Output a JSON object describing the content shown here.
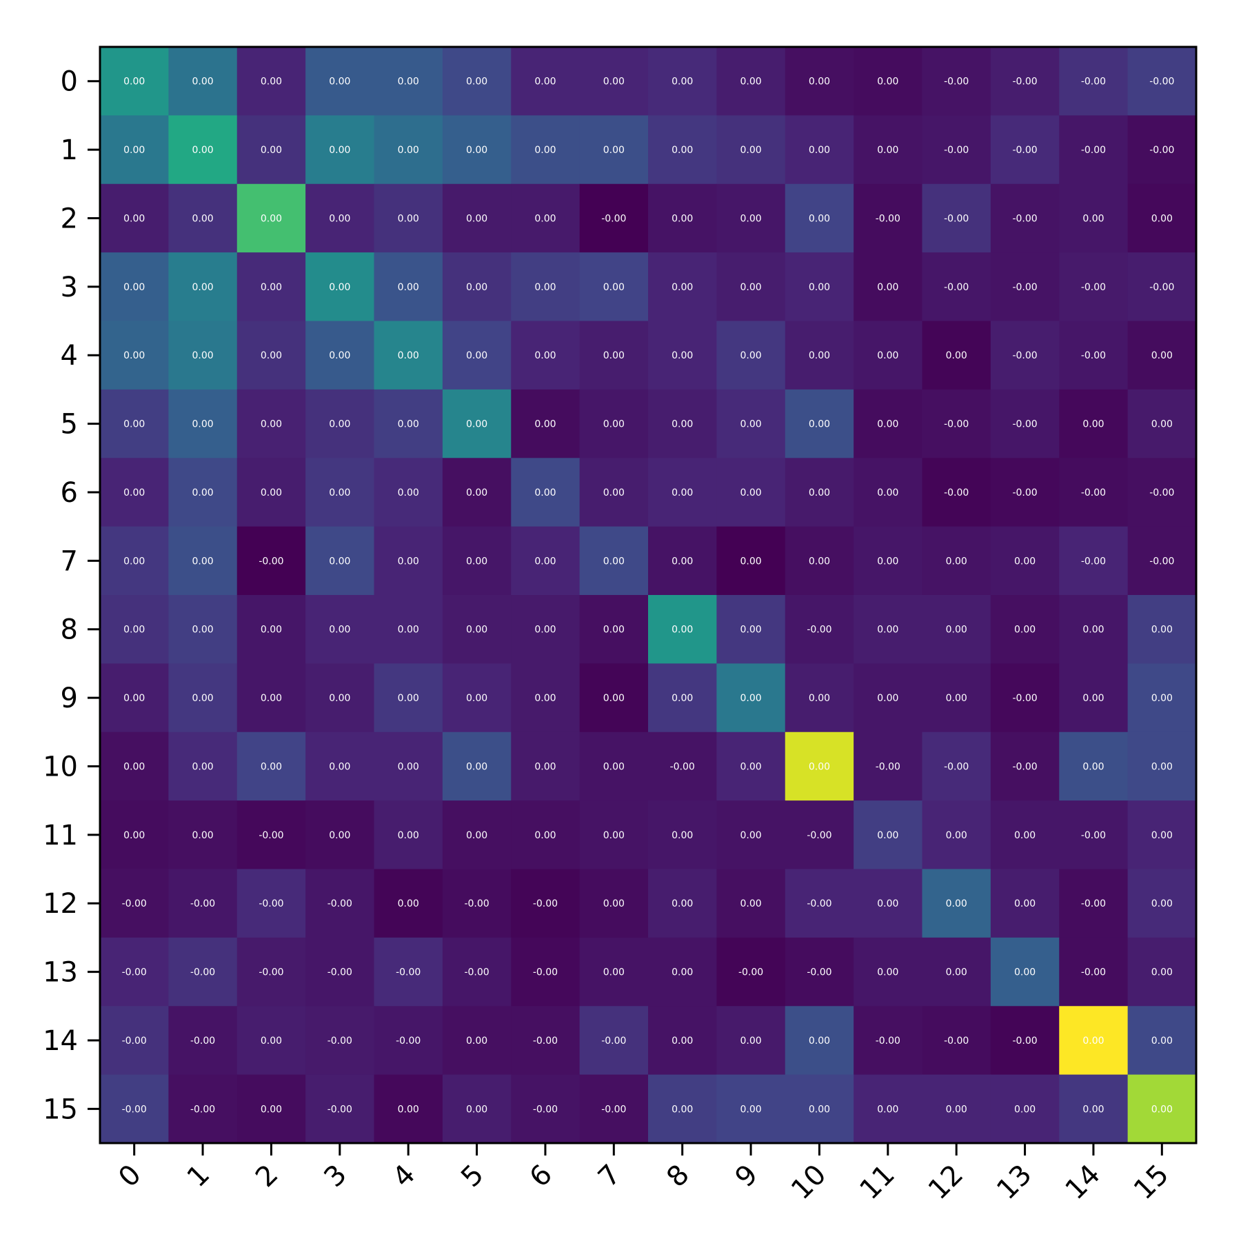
{
  "chart_data": {
    "type": "heatmap",
    "title": "",
    "xlabel": "",
    "ylabel": "",
    "colormap": "viridis",
    "x_categories": [
      "0",
      "1",
      "2",
      "3",
      "4",
      "5",
      "6",
      "7",
      "8",
      "9",
      "10",
      "11",
      "12",
      "13",
      "14",
      "15"
    ],
    "y_categories": [
      "0",
      "1",
      "2",
      "3",
      "4",
      "5",
      "6",
      "7",
      "8",
      "9",
      "10",
      "11",
      "12",
      "13",
      "14",
      "15"
    ],
    "grid": false,
    "legend": "none",
    "cell_labels": [
      [
        "0.00",
        "0.00",
        "0.00",
        "0.00",
        "0.00",
        "0.00",
        "0.00",
        "0.00",
        "0.00",
        "0.00",
        "0.00",
        "0.00",
        "-0.00",
        "-0.00",
        "-0.00",
        "-0.00"
      ],
      [
        "0.00",
        "0.00",
        "0.00",
        "0.00",
        "0.00",
        "0.00",
        "0.00",
        "0.00",
        "0.00",
        "0.00",
        "0.00",
        "0.00",
        "-0.00",
        "-0.00",
        "-0.00",
        "-0.00"
      ],
      [
        "0.00",
        "0.00",
        "0.00",
        "0.00",
        "0.00",
        "0.00",
        "0.00",
        "-0.00",
        "0.00",
        "0.00",
        "0.00",
        "-0.00",
        "-0.00",
        "-0.00",
        "0.00",
        "0.00"
      ],
      [
        "0.00",
        "0.00",
        "0.00",
        "0.00",
        "0.00",
        "0.00",
        "0.00",
        "0.00",
        "0.00",
        "0.00",
        "0.00",
        "0.00",
        "-0.00",
        "-0.00",
        "-0.00",
        "-0.00"
      ],
      [
        "0.00",
        "0.00",
        "0.00",
        "0.00",
        "0.00",
        "0.00",
        "0.00",
        "0.00",
        "0.00",
        "0.00",
        "0.00",
        "0.00",
        "0.00",
        "-0.00",
        "-0.00",
        "0.00"
      ],
      [
        "0.00",
        "0.00",
        "0.00",
        "0.00",
        "0.00",
        "0.00",
        "0.00",
        "0.00",
        "0.00",
        "0.00",
        "0.00",
        "0.00",
        "-0.00",
        "-0.00",
        "0.00",
        "0.00"
      ],
      [
        "0.00",
        "0.00",
        "0.00",
        "0.00",
        "0.00",
        "0.00",
        "0.00",
        "0.00",
        "0.00",
        "0.00",
        "0.00",
        "0.00",
        "-0.00",
        "-0.00",
        "-0.00",
        "-0.00"
      ],
      [
        "0.00",
        "0.00",
        "-0.00",
        "0.00",
        "0.00",
        "0.00",
        "0.00",
        "0.00",
        "0.00",
        "0.00",
        "0.00",
        "0.00",
        "0.00",
        "0.00",
        "-0.00",
        "-0.00"
      ],
      [
        "0.00",
        "0.00",
        "0.00",
        "0.00",
        "0.00",
        "0.00",
        "0.00",
        "0.00",
        "0.00",
        "0.00",
        "-0.00",
        "0.00",
        "0.00",
        "0.00",
        "0.00",
        "0.00"
      ],
      [
        "0.00",
        "0.00",
        "0.00",
        "0.00",
        "0.00",
        "0.00",
        "0.00",
        "0.00",
        "0.00",
        "0.00",
        "0.00",
        "0.00",
        "0.00",
        "-0.00",
        "0.00",
        "0.00"
      ],
      [
        "0.00",
        "0.00",
        "0.00",
        "0.00",
        "0.00",
        "0.00",
        "0.00",
        "0.00",
        "-0.00",
        "0.00",
        "0.00",
        "-0.00",
        "-0.00",
        "-0.00",
        "0.00",
        "0.00"
      ],
      [
        "0.00",
        "0.00",
        "-0.00",
        "0.00",
        "0.00",
        "0.00",
        "0.00",
        "0.00",
        "0.00",
        "0.00",
        "-0.00",
        "0.00",
        "0.00",
        "0.00",
        "-0.00",
        "0.00"
      ],
      [
        "-0.00",
        "-0.00",
        "-0.00",
        "-0.00",
        "0.00",
        "-0.00",
        "-0.00",
        "0.00",
        "0.00",
        "0.00",
        "-0.00",
        "0.00",
        "0.00",
        "0.00",
        "-0.00",
        "0.00"
      ],
      [
        "-0.00",
        "-0.00",
        "-0.00",
        "-0.00",
        "-0.00",
        "-0.00",
        "-0.00",
        "0.00",
        "0.00",
        "-0.00",
        "-0.00",
        "0.00",
        "0.00",
        "0.00",
        "-0.00",
        "0.00"
      ],
      [
        "-0.00",
        "-0.00",
        "0.00",
        "-0.00",
        "-0.00",
        "0.00",
        "-0.00",
        "-0.00",
        "0.00",
        "0.00",
        "0.00",
        "-0.00",
        "-0.00",
        "-0.00",
        "0.00",
        "0.00"
      ],
      [
        "-0.00",
        "-0.00",
        "0.00",
        "-0.00",
        "0.00",
        "0.00",
        "-0.00",
        "-0.00",
        "0.00",
        "0.00",
        "0.00",
        "0.00",
        "0.00",
        "0.00",
        "0.00",
        "0.00"
      ]
    ],
    "intensity": [
      [
        0.52,
        0.38,
        0.1,
        0.28,
        0.28,
        0.22,
        0.1,
        0.1,
        0.12,
        0.08,
        0.04,
        0.03,
        0.05,
        0.08,
        0.14,
        0.18
      ],
      [
        0.4,
        0.6,
        0.14,
        0.42,
        0.36,
        0.3,
        0.24,
        0.24,
        0.16,
        0.14,
        0.1,
        0.05,
        0.06,
        0.12,
        0.06,
        0.03
      ],
      [
        0.08,
        0.14,
        0.7,
        0.1,
        0.14,
        0.07,
        0.07,
        0.0,
        0.05,
        0.06,
        0.2,
        0.03,
        0.14,
        0.05,
        0.06,
        0.02
      ],
      [
        0.3,
        0.42,
        0.12,
        0.48,
        0.26,
        0.14,
        0.18,
        0.2,
        0.1,
        0.08,
        0.1,
        0.03,
        0.06,
        0.05,
        0.07,
        0.08
      ],
      [
        0.32,
        0.4,
        0.14,
        0.28,
        0.45,
        0.2,
        0.1,
        0.08,
        0.1,
        0.16,
        0.08,
        0.06,
        0.01,
        0.08,
        0.06,
        0.03
      ],
      [
        0.18,
        0.3,
        0.09,
        0.14,
        0.18,
        0.45,
        0.03,
        0.06,
        0.08,
        0.12,
        0.24,
        0.03,
        0.04,
        0.06,
        0.02,
        0.07
      ],
      [
        0.1,
        0.22,
        0.08,
        0.16,
        0.12,
        0.04,
        0.22,
        0.08,
        0.1,
        0.1,
        0.07,
        0.05,
        0.01,
        0.02,
        0.03,
        0.04
      ],
      [
        0.16,
        0.24,
        0.0,
        0.22,
        0.1,
        0.06,
        0.1,
        0.22,
        0.05,
        0.0,
        0.04,
        0.06,
        0.05,
        0.06,
        0.1,
        0.04
      ],
      [
        0.14,
        0.18,
        0.06,
        0.1,
        0.1,
        0.07,
        0.07,
        0.04,
        0.52,
        0.16,
        0.06,
        0.08,
        0.08,
        0.04,
        0.06,
        0.18
      ],
      [
        0.08,
        0.16,
        0.06,
        0.08,
        0.16,
        0.1,
        0.07,
        0.01,
        0.16,
        0.4,
        0.08,
        0.06,
        0.06,
        0.02,
        0.06,
        0.22
      ],
      [
        0.04,
        0.12,
        0.2,
        0.1,
        0.1,
        0.24,
        0.07,
        0.05,
        0.05,
        0.1,
        0.94,
        0.06,
        0.12,
        0.04,
        0.24,
        0.22
      ],
      [
        0.03,
        0.04,
        0.02,
        0.03,
        0.08,
        0.04,
        0.04,
        0.05,
        0.06,
        0.05,
        0.05,
        0.18,
        0.1,
        0.06,
        0.06,
        0.1
      ],
      [
        0.04,
        0.06,
        0.12,
        0.06,
        0.01,
        0.03,
        0.01,
        0.03,
        0.08,
        0.04,
        0.1,
        0.1,
        0.32,
        0.08,
        0.03,
        0.12
      ],
      [
        0.1,
        0.14,
        0.07,
        0.06,
        0.12,
        0.06,
        0.02,
        0.05,
        0.05,
        0.01,
        0.03,
        0.06,
        0.06,
        0.3,
        0.03,
        0.08
      ],
      [
        0.14,
        0.05,
        0.08,
        0.07,
        0.06,
        0.04,
        0.04,
        0.14,
        0.05,
        0.07,
        0.24,
        0.04,
        0.03,
        0.01,
        1.0,
        0.22
      ],
      [
        0.18,
        0.04,
        0.03,
        0.08,
        0.02,
        0.08,
        0.05,
        0.04,
        0.18,
        0.2,
        0.2,
        0.1,
        0.1,
        0.1,
        0.16,
        0.86
      ]
    ]
  }
}
